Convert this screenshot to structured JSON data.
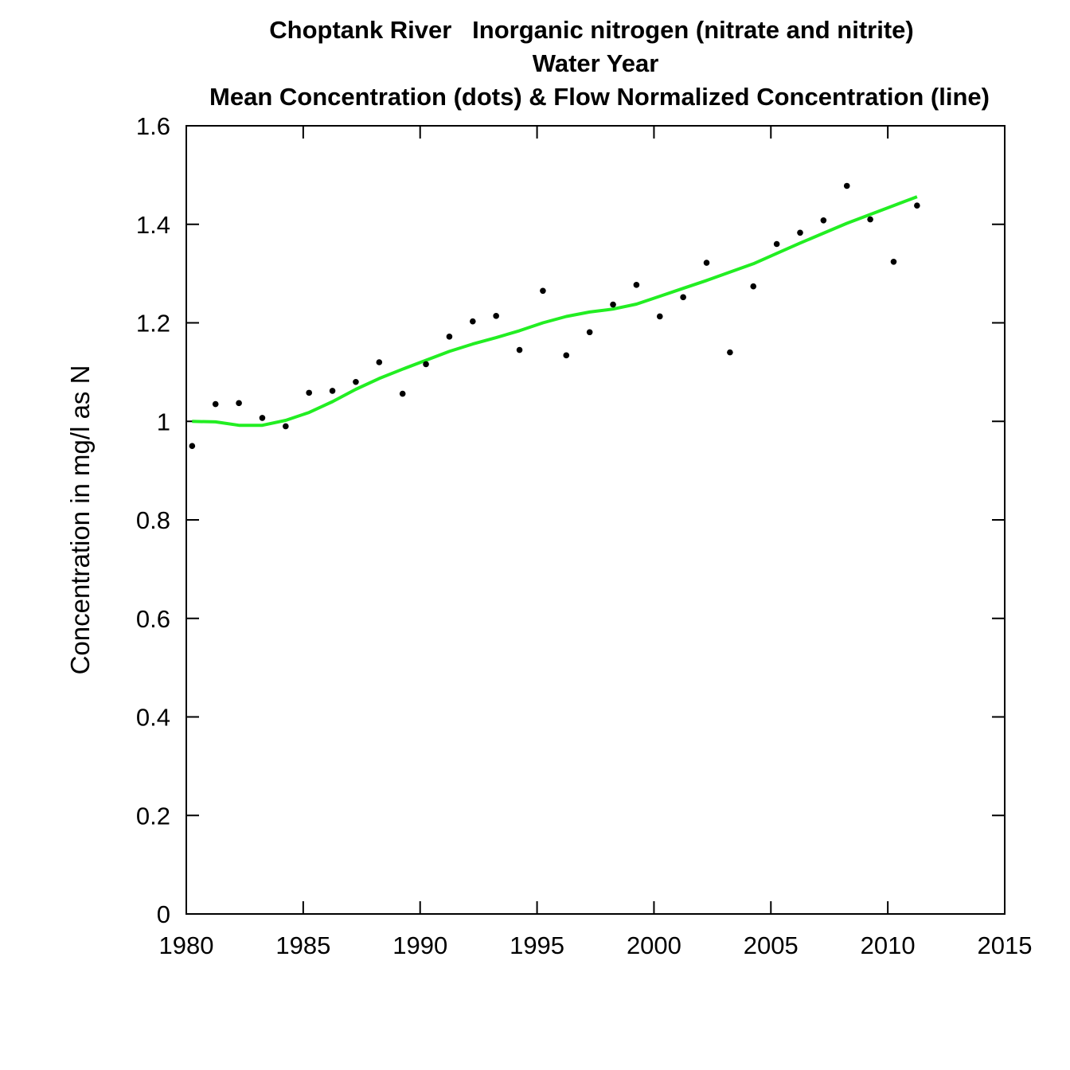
{
  "chart_data": {
    "type": "scatter",
    "title": "Choptank River   Inorganic nitrogen (nitrate and nitrite)",
    "subtitle": "Water Year",
    "subtitle2": "Mean Concentration (dots) & Flow Normalized Concentration (line)",
    "xlabel": "",
    "ylabel": "Concentration in mg/l as N",
    "xlim": [
      1980,
      2015
    ],
    "ylim": [
      0,
      1.6
    ],
    "x_ticks": [
      "1980",
      "1985",
      "1990",
      "1995",
      "2000",
      "2005",
      "2010",
      "2015"
    ],
    "y_ticks": [
      "0",
      "0.2",
      "0.4",
      "0.6",
      "0.8",
      "1",
      "1.2",
      "1.4",
      "1.6"
    ],
    "grid": false,
    "colors": {
      "points": "#000000",
      "line": "#22ee22",
      "axes": "#000000"
    },
    "series": [
      {
        "type": "scatter",
        "x": [
          1980.25,
          1981.25,
          1982.25,
          1983.25,
          1984.25,
          1985.25,
          1986.25,
          1987.25,
          1988.25,
          1989.25,
          1990.25,
          1991.25,
          1992.25,
          1993.25,
          1994.25,
          1995.25,
          1996.25,
          1997.25,
          1998.25,
          1999.25,
          2000.25,
          2001.25,
          2002.25,
          2003.25,
          2004.25,
          2005.25,
          2006.25,
          2007.25,
          2008.25,
          2009.25,
          2010.25,
          2011.25
        ],
        "y": [
          0.95,
          1.035,
          1.037,
          1.007,
          0.99,
          1.058,
          1.062,
          1.08,
          1.12,
          1.056,
          1.116,
          1.172,
          1.203,
          1.214,
          1.145,
          1.265,
          1.134,
          1.181,
          1.237,
          1.277,
          1.213,
          1.252,
          1.322,
          1.14,
          1.274,
          1.36,
          1.383,
          1.408,
          1.478,
          1.41,
          1.324,
          1.438
        ]
      },
      {
        "type": "line",
        "x": [
          1980.25,
          1981.25,
          1982.25,
          1983.25,
          1984.25,
          1985.25,
          1986.25,
          1987.25,
          1988.25,
          1989.25,
          1990.25,
          1991.25,
          1992.25,
          1993.25,
          1994.25,
          1995.25,
          1996.25,
          1997.25,
          1998.25,
          1999.25,
          2000.25,
          2001.25,
          2002.25,
          2003.25,
          2004.25,
          2005.25,
          2006.25,
          2007.25,
          2008.25,
          2009.25,
          2010.25,
          2011.25
        ],
        "y": [
          1.0,
          0.999,
          0.992,
          0.992,
          1.002,
          1.018,
          1.04,
          1.065,
          1.087,
          1.106,
          1.124,
          1.142,
          1.157,
          1.17,
          1.184,
          1.2,
          1.213,
          1.222,
          1.228,
          1.238,
          1.254,
          1.27,
          1.286,
          1.303,
          1.32,
          1.341,
          1.362,
          1.382,
          1.402,
          1.42,
          1.438,
          1.456
        ]
      }
    ]
  }
}
